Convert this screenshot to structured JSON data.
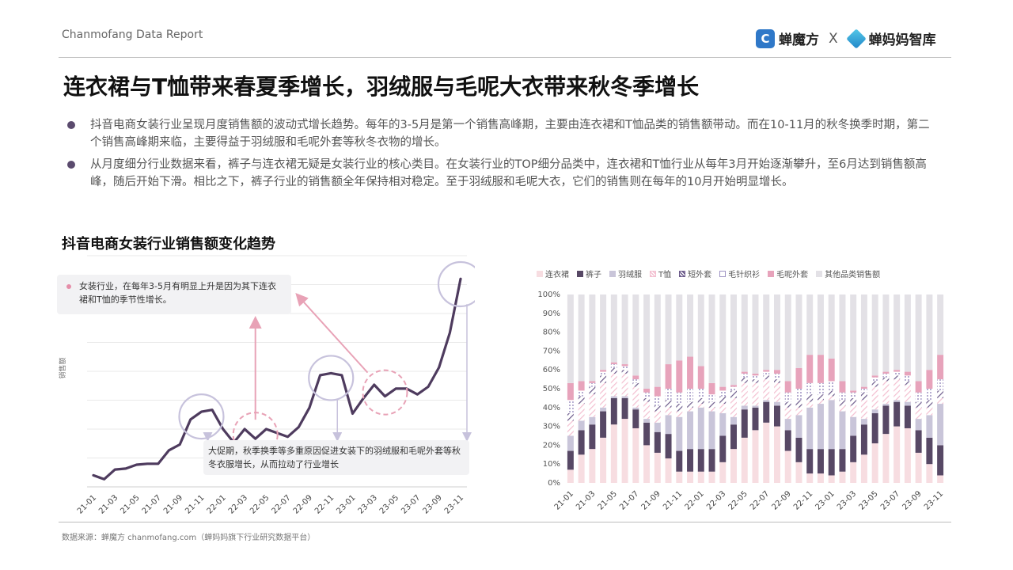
{
  "header": {
    "report_name": "Chanmofang Data Report",
    "brand1": "蝉魔方",
    "brand_sep": "X",
    "brand2": "蝉妈妈智库",
    "brand1_logo_glyph": "C"
  },
  "title": "连衣裙与T恤带来春夏季增长，羽绒服与毛呢大衣带来秋冬季增长",
  "bullets": [
    "抖音电商女装行业呈现月度销售额的波动式增长趋势。每年的3-5月是第一个销售高峰期，主要由连衣裙和T恤品类的销售额带动。而在10-11月的秋冬换季时期，第二个销售高峰期来临，主要得益于羽绒服和毛呢外套等秋冬衣物的增长。",
    "从月度细分行业数据来看，裤子与连衣裙无疑是女装行业的核心类目。在女装行业的TOP细分品类中，连衣裙和T恤行业从每年3月开始逐渐攀升，至6月达到销售额高峰，随后开始下滑。相比之下，裤子行业的销售额全年保持相对稳定。至于羽绒服和毛呢大衣，它们的销售则在每年的10月开始明显增长。"
  ],
  "left_chart_title": "抖音电商女装行业销售额变化趋势",
  "annotation1": "女装行业，在每年3-5月有明显上升是因为其下连衣裙和T恤的季节性增长。",
  "annotation2": "大促期，秋季换季等多重原因促进女装下的羽绒服和毛呢外套等秋冬衣服增长，从而拉动了行业增长",
  "footer": "数据来源：蝉魔方 chanmofang.com（蝉妈妈旗下行业研究数据平台）",
  "colors": {
    "line": "#4e3b5e",
    "arrow": "#e8a2b6",
    "circle": "#c7c2dc",
    "dashed_circle": "#e8a2b6"
  },
  "chart_data": [
    {
      "type": "line",
      "title": "",
      "ylabel": "销售额",
      "xlabel": "",
      "x": [
        "21-01",
        "21-02",
        "21-03",
        "21-04",
        "21-05",
        "21-06",
        "21-07",
        "21-08",
        "21-09",
        "21-10",
        "21-11",
        "21-12",
        "22-01",
        "22-02",
        "22-03",
        "22-04",
        "22-05",
        "22-06",
        "22-07",
        "22-08",
        "22-09",
        "22-10",
        "22-11",
        "22-12",
        "23-01",
        "23-02",
        "23-03",
        "23-04",
        "23-05",
        "23-06",
        "23-07",
        "23-08",
        "23-09",
        "23-10",
        "23-11"
      ],
      "tick_labels": [
        "21-01",
        "21-03",
        "21-05",
        "21-07",
        "21-09",
        "21-11",
        "22-01",
        "22-03",
        "22-05",
        "22-07",
        "22-09",
        "22-11",
        "23-01",
        "23-03",
        "23-05",
        "23-07",
        "23-09",
        "23-11"
      ],
      "values": [
        6,
        4,
        9,
        9.5,
        11.5,
        12,
        12,
        19,
        22,
        35,
        39,
        40,
        30,
        23,
        30,
        25,
        30,
        28,
        26,
        31,
        41,
        58,
        59,
        58,
        38,
        46,
        53,
        47,
        51,
        51,
        48,
        52,
        62,
        80,
        108
      ],
      "ylim": [
        0,
        120
      ],
      "grid": true,
      "y_axis_labels_shown": false,
      "highlight_circles": [
        "21-11",
        "22-11",
        "23-11"
      ],
      "dashed_circles": [
        "22-04",
        "23-04"
      ]
    },
    {
      "type": "bar",
      "stacked": true,
      "title": "",
      "categories": [
        "21-01",
        "21-02",
        "21-03",
        "21-04",
        "21-05",
        "21-06",
        "21-07",
        "21-08",
        "21-09",
        "21-10",
        "21-11",
        "21-12",
        "22-01",
        "22-02",
        "22-03",
        "22-04",
        "22-05",
        "22-06",
        "22-07",
        "22-08",
        "22-09",
        "22-10",
        "22-11",
        "22-12",
        "23-01",
        "23-02",
        "23-03",
        "23-04",
        "23-05",
        "23-06",
        "23-07",
        "23-08",
        "23-09",
        "23-10",
        "23-11"
      ],
      "tick_labels": [
        "21-01",
        "21-03",
        "21-05",
        "21-07",
        "21-09",
        "21-11",
        "22-01",
        "22-03",
        "22-05",
        "22-07",
        "22-09",
        "22-11",
        "23-01",
        "23-03",
        "23-05",
        "23-07",
        "23-09",
        "23-11"
      ],
      "ylim": [
        0,
        100
      ],
      "y_ticks": [
        "0%",
        "10%",
        "20%",
        "30%",
        "40%",
        "50%",
        "60%",
        "70%",
        "80%",
        "90%",
        "100%"
      ],
      "legend": "top",
      "series": [
        {
          "name": "连衣裙",
          "color": "#f7dde1",
          "pattern": "solid",
          "values": [
            7,
            15,
            18,
            24,
            31,
            34,
            29,
            20,
            16,
            13,
            6,
            6,
            6,
            6,
            11,
            18,
            24,
            28,
            32,
            30,
            17,
            11,
            5,
            5,
            4,
            6,
            11,
            15,
            21,
            26,
            30,
            29,
            16,
            10,
            4
          ]
        },
        {
          "name": "裤子",
          "color": "#574865",
          "pattern": "solid",
          "values": [
            10,
            13,
            13,
            14,
            14,
            11,
            10,
            12,
            11,
            13,
            11,
            12,
            12,
            12,
            14,
            13,
            15,
            12,
            11,
            11,
            11,
            13,
            13,
            13,
            14,
            12,
            14,
            16,
            16,
            15,
            13,
            12,
            12,
            14,
            16
          ]
        },
        {
          "name": "羽绒服",
          "color": "#c9c5d9",
          "pattern": "solid",
          "values": [
            8,
            5,
            4,
            2,
            1,
            1,
            1,
            2,
            5,
            10,
            18,
            20,
            22,
            20,
            12,
            4,
            2,
            1,
            1,
            2,
            6,
            12,
            22,
            24,
            26,
            20,
            10,
            3,
            2,
            1,
            1,
            2,
            6,
            12,
            22
          ]
        },
        {
          "name": "T恤",
          "color": "#f3bfd0",
          "pattern": "hatch",
          "values": [
            8,
            9,
            12,
            13,
            12,
            12,
            11,
            9,
            6,
            4,
            3,
            2,
            2,
            2,
            5,
            10,
            12,
            12,
            11,
            10,
            6,
            4,
            3,
            2,
            2,
            3,
            6,
            10,
            12,
            12,
            11,
            9,
            6,
            4,
            3
          ]
        },
        {
          "name": "短外套",
          "color": "#6b5a8a",
          "pattern": "hatch",
          "values": [
            4,
            4,
            4,
            4,
            3,
            2,
            2,
            2,
            3,
            4,
            4,
            3,
            3,
            3,
            4,
            4,
            3,
            2,
            2,
            2,
            3,
            4,
            4,
            3,
            3,
            3,
            4,
            4,
            3,
            2,
            2,
            2,
            3,
            4,
            4
          ]
        },
        {
          "name": "毛针织衫",
          "color": "#9e93c3",
          "pattern": "dots",
          "values": [
            7,
            3,
            2,
            2,
            2,
            2,
            2,
            3,
            5,
            6,
            6,
            7,
            5,
            4,
            3,
            2,
            2,
            2,
            2,
            3,
            5,
            6,
            6,
            6,
            5,
            4,
            3,
            2,
            2,
            2,
            2,
            3,
            5,
            6,
            6
          ]
        },
        {
          "name": "毛呢外套",
          "color": "#e7a3bb",
          "pattern": "solid",
          "values": [
            9,
            5,
            1,
            1,
            1,
            1,
            2,
            2,
            5,
            13,
            17,
            17,
            12,
            6,
            2,
            1,
            1,
            1,
            1,
            2,
            6,
            11,
            15,
            15,
            12,
            6,
            1,
            1,
            1,
            1,
            1,
            2,
            6,
            10,
            13
          ]
        },
        {
          "name": "其他品类销售额",
          "color": "#e3e1e6",
          "pattern": "solid",
          "values": [
            47,
            46,
            46,
            40,
            36,
            37,
            43,
            50,
            49,
            37,
            35,
            33,
            38,
            47,
            49,
            48,
            41,
            42,
            40,
            40,
            46,
            39,
            32,
            32,
            34,
            46,
            51,
            49,
            43,
            41,
            40,
            41,
            46,
            40,
            32
          ]
        }
      ]
    }
  ]
}
